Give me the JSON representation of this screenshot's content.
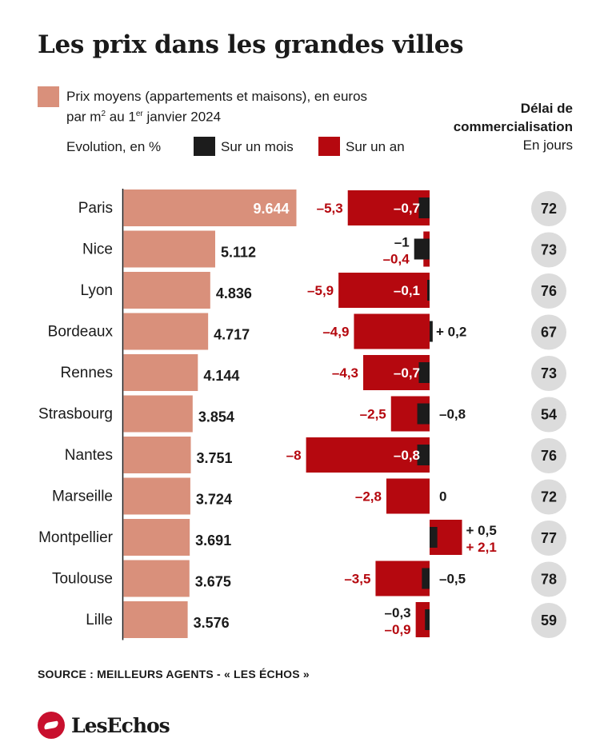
{
  "chart_data": {
    "type": "bar",
    "title": "Les prix dans les grandes villes",
    "legend": {
      "price_line1": "Prix moyens (appartements et maisons), en euros",
      "price_line2_a": "par m",
      "price_line2_sup1": "2",
      "price_line2_b": " au 1",
      "price_line2_sup2": "er",
      "price_line2_c": " janvier 2024",
      "evolution_label": "Evolution, en %",
      "month_label": "Sur un mois",
      "year_label": "Sur un an"
    },
    "delay_header": {
      "line1": "Délai de",
      "line2": "commercialisation",
      "line3": "En jours"
    },
    "categories": [
      "Paris",
      "Nice",
      "Lyon",
      "Bordeaux",
      "Rennes",
      "Strasbourg",
      "Nantes",
      "Marseille",
      "Montpellier",
      "Toulouse",
      "Lille"
    ],
    "series": [
      {
        "name": "Prix moyens (appartements et maisons), en euros par m2 au 1er janvier 2024",
        "values": [
          9644,
          5112,
          4836,
          4717,
          4144,
          3854,
          3751,
          3724,
          3691,
          3675,
          3576
        ],
        "labels": [
          "9.644",
          "5.112",
          "4.836",
          "4.717",
          "4.144",
          "3.854",
          "3.751",
          "3.724",
          "3.691",
          "3.675",
          "3.576"
        ]
      },
      {
        "name": "Sur un mois",
        "values": [
          -0.7,
          -1,
          -0.1,
          0.2,
          -0.7,
          -0.8,
          -0.8,
          0,
          0.5,
          -0.5,
          -0.3
        ],
        "labels": [
          "–0,7",
          "–1",
          "–0,1",
          "+ 0,2",
          "–0,7",
          "–0,8",
          "–0,8",
          "0",
          "+ 0,5",
          "–0,5",
          "–0,3"
        ]
      },
      {
        "name": "Sur un an",
        "values": [
          -5.3,
          -0.4,
          -5.9,
          -4.9,
          -4.3,
          -2.5,
          -8,
          -2.8,
          2.1,
          -3.5,
          -0.9
        ],
        "labels": [
          "–5,3",
          "–0,4",
          "–5,9",
          "–4,9",
          "–4,3",
          "–2,5",
          "–8",
          "–2,8",
          "+ 2,1",
          "–3,5",
          "–0,9"
        ]
      },
      {
        "name": "Délai de commercialisation",
        "values": [
          72,
          73,
          76,
          67,
          73,
          54,
          76,
          72,
          77,
          78,
          59
        ],
        "labels": [
          "72",
          "73",
          "76",
          "67",
          "73",
          "54",
          "76",
          "72",
          "77",
          "78",
          "59"
        ]
      }
    ],
    "xlim_price": [
      0,
      9644
    ],
    "xlim_evolution": [
      -8,
      2.1
    ],
    "source": "SOURCE : MEILLEURS AGENTS - « LES ÉCHOS »",
    "logo": "LesEchos"
  },
  "colors": {
    "price_bar": "#d9907b",
    "year_bar": "#b5080f",
    "month_bar": "#1c1c1c",
    "year_label": "#b5080f",
    "month_label": "#1a1a1a",
    "delay_circle": "#dcdcdc",
    "axis": "#1a1a1a",
    "text": "#1a1a1a"
  }
}
